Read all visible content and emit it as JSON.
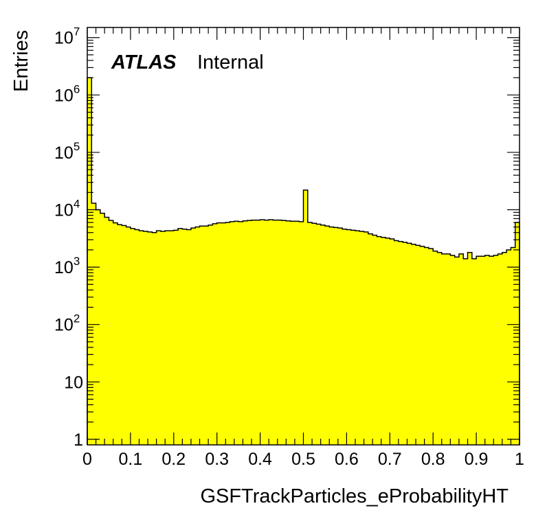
{
  "chart_data": {
    "type": "histogram",
    "title": "",
    "xlabel": "GSFTrackParticles_eProbabilityHT",
    "ylabel": "Entries",
    "label_bold": "ATLAS",
    "label_text": "Internal",
    "log_y": true,
    "xlim": [
      0,
      1
    ],
    "ylim": [
      0.8,
      15000000
    ],
    "fill_color": "#ffff00",
    "line_color": "#000000",
    "bin_width": 0.01,
    "x_ticks": [
      "0",
      "0.1",
      "0.2",
      "0.3",
      "0.4",
      "0.5",
      "0.6",
      "0.7",
      "0.8",
      "0.9",
      "1"
    ],
    "y_ticks": [
      {
        "value": 1,
        "base": "1",
        "exp": ""
      },
      {
        "value": 10,
        "base": "10",
        "exp": ""
      },
      {
        "value": 100,
        "base": "10",
        "exp": "2"
      },
      {
        "value": 1000,
        "base": "10",
        "exp": "3"
      },
      {
        "value": 10000,
        "base": "10",
        "exp": "4"
      },
      {
        "value": 100000,
        "base": "10",
        "exp": "5"
      },
      {
        "value": 1000000,
        "base": "10",
        "exp": "6"
      },
      {
        "value": 10000000,
        "base": "10",
        "exp": "7"
      }
    ],
    "values": [
      2000000,
      13000,
      10000,
      8700,
      7400,
      6500,
      5900,
      5500,
      5300,
      5000,
      4700,
      4500,
      4300,
      4200,
      4100,
      4000,
      4300,
      4200,
      4300,
      4300,
      4400,
      4700,
      4600,
      4500,
      4800,
      5000,
      5200,
      5200,
      5400,
      5700,
      5900,
      5900,
      6000,
      6200,
      6300,
      6200,
      6400,
      6500,
      6600,
      6600,
      6700,
      6600,
      6700,
      6600,
      6600,
      6500,
      6400,
      6300,
      6300,
      6200,
      22000,
      6000,
      5800,
      5600,
      5400,
      5200,
      5000,
      4900,
      4800,
      4600,
      4500,
      4400,
      4300,
      4200,
      4100,
      3800,
      3600,
      3400,
      3300,
      3200,
      3100,
      2900,
      2800,
      2700,
      2600,
      2500,
      2400,
      2300,
      2200,
      2100,
      1900,
      1800,
      1700,
      1700,
      1600,
      1500,
      1700,
      1400,
      1800,
      1400,
      1550,
      1550,
      1600,
      1550,
      1600,
      1700,
      1800,
      2000,
      2200,
      6000
    ]
  }
}
